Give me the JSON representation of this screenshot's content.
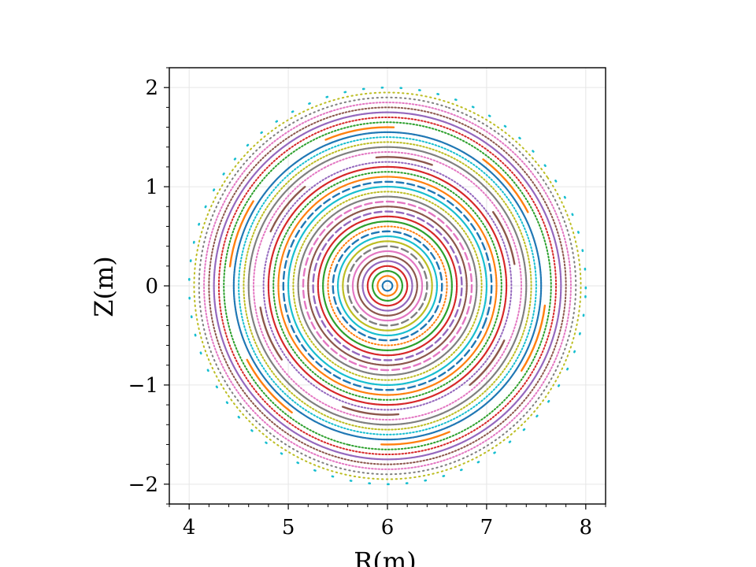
{
  "chart_data": {
    "type": "scatter",
    "title": "",
    "xlabel": "R(m)",
    "ylabel": "Z(m)",
    "xlim": [
      3.8,
      8.2
    ],
    "ylim": [
      -2.2,
      2.2
    ],
    "grid": true,
    "legend": "none",
    "x_ticks": [
      4,
      5,
      6,
      7,
      8
    ],
    "y_ticks": [
      -2,
      -1,
      0,
      1,
      2
    ],
    "x_tick_labels": [
      "4",
      "5",
      "6",
      "7",
      "8"
    ],
    "y_tick_labels": [
      "−2",
      "−1",
      "0",
      "1",
      "2"
    ],
    "center": [
      6.0,
      0.0
    ],
    "colors": [
      "#1f77b4",
      "#ff7f0e",
      "#2ca02c",
      "#d62728",
      "#9467bd",
      "#8c564b",
      "#e377c2",
      "#7f7f7f",
      "#bcbd22",
      "#17becf"
    ],
    "series": [
      {
        "radius": 0.05,
        "pattern": "dense"
      },
      {
        "radius": 0.1,
        "pattern": "dense"
      },
      {
        "radius": 0.15,
        "pattern": "dense"
      },
      {
        "radius": 0.2,
        "pattern": "dense"
      },
      {
        "radius": 0.25,
        "pattern": "dense"
      },
      {
        "radius": 0.3,
        "pattern": "dense"
      },
      {
        "radius": 0.35,
        "pattern": "dense"
      },
      {
        "radius": 0.4,
        "pattern": "dash"
      },
      {
        "radius": 0.45,
        "pattern": "dense"
      },
      {
        "radius": 0.5,
        "pattern": "dense"
      },
      {
        "radius": 0.55,
        "pattern": "dash"
      },
      {
        "radius": 0.6,
        "pattern": "dot"
      },
      {
        "radius": 0.65,
        "pattern": "dense"
      },
      {
        "radius": 0.7,
        "pattern": "dense"
      },
      {
        "radius": 0.75,
        "pattern": "dash"
      },
      {
        "radius": 0.8,
        "pattern": "dense"
      },
      {
        "radius": 0.85,
        "pattern": "dash"
      },
      {
        "radius": 0.9,
        "pattern": "dense"
      },
      {
        "radius": 0.95,
        "pattern": "dot"
      },
      {
        "radius": 1.0,
        "pattern": "dense"
      },
      {
        "radius": 1.05,
        "pattern": "dash"
      },
      {
        "radius": 1.1,
        "pattern": "dense"
      },
      {
        "radius": 1.15,
        "pattern": "dot"
      },
      {
        "radius": 1.2,
        "pattern": "dense"
      },
      {
        "radius": 1.25,
        "pattern": "dot"
      },
      {
        "radius": 1.3,
        "pattern": "island"
      },
      {
        "radius": 1.35,
        "pattern": "dot"
      },
      {
        "radius": 1.4,
        "pattern": "dense"
      },
      {
        "radius": 1.45,
        "pattern": "dot"
      },
      {
        "radius": 1.5,
        "pattern": "dot"
      },
      {
        "radius": 1.55,
        "pattern": "dense"
      },
      {
        "radius": 1.6,
        "pattern": "island"
      },
      {
        "radius": 1.65,
        "pattern": "dot"
      },
      {
        "radius": 1.7,
        "pattern": "dot"
      },
      {
        "radius": 1.75,
        "pattern": "dense"
      },
      {
        "radius": 1.8,
        "pattern": "dot"
      },
      {
        "radius": 1.85,
        "pattern": "dot"
      },
      {
        "radius": 1.9,
        "pattern": "sparse"
      },
      {
        "radius": 1.95,
        "pattern": "sparse"
      },
      {
        "radius": 2.0,
        "pattern": "scatter"
      }
    ]
  }
}
